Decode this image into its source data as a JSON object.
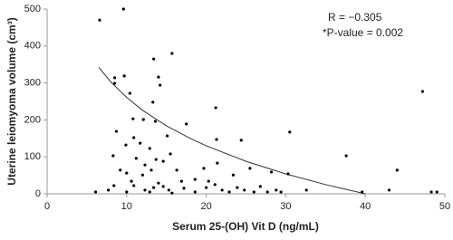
{
  "chart_data": {
    "type": "scatter",
    "x_label": "Serum 25-(OH) Vit D (ng/mL)",
    "y_label": "Uterine leiomyoma volume (cm³)",
    "annotations": [
      "R = −0.305",
      "*P-value = 0.002"
    ],
    "color": "#000000",
    "trend_color": "#333333",
    "axis_color": "#999999",
    "xlim": [
      0,
      50
    ],
    "xticks": [
      0,
      10,
      20,
      30,
      40,
      50
    ],
    "ylim": [
      0,
      500
    ],
    "yticks": [
      0,
      100,
      200,
      300,
      400,
      500
    ],
    "x": [
      6.6,
      9.6,
      8.5,
      9.7,
      8.5,
      10.4,
      13.4,
      15.7,
      14.0,
      14.2,
      8.7,
      10.8,
      12.1,
      13.3,
      13.6,
      15.1,
      9.9,
      10.9,
      11.7,
      17.5,
      21.2,
      21.3,
      24.4,
      30.5,
      47.2,
      37.6,
      44.0,
      8.3,
      11.2,
      12.9,
      13.7,
      14.6,
      15.5,
      12.3,
      10.0,
      10.6,
      9.2,
      12.0,
      13.1,
      16.3,
      19.7,
      21.4,
      25.5,
      28.2,
      30.3,
      7.7,
      6.1,
      8.4,
      10.9,
      12.3,
      13.4,
      14.0,
      14.6,
      15.3,
      16.9,
      17.2,
      18.6,
      20.0,
      20.3,
      21.1,
      22.0,
      23.4,
      23.9,
      24.8,
      26.0,
      26.8,
      27.7,
      28.8,
      29.4,
      32.6,
      39.6,
      43.0,
      48.3,
      49.0,
      10.0,
      12.9,
      15.7,
      18.6,
      22.9
    ],
    "y": [
      470,
      500,
      314,
      319,
      299,
      272,
      365,
      380,
      316,
      294,
      169,
      203,
      201,
      248,
      196,
      157,
      132,
      152,
      137,
      189,
      233,
      147,
      145,
      167,
      277,
      103,
      64,
      103,
      96,
      123,
      93,
      88,
      108,
      78,
      56,
      34,
      64,
      51,
      64,
      64,
      69,
      83,
      69,
      59,
      54,
      10,
      5,
      22,
      22,
      10,
      17,
      29,
      20,
      10,
      34,
      15,
      39,
      17,
      34,
      25,
      10,
      51,
      17,
      10,
      5,
      20,
      5,
      10,
      5,
      10,
      5,
      10,
      5,
      5,
      5,
      5,
      2,
      5,
      5
    ],
    "trend": {
      "x": [
        6.5,
        8,
        10,
        12,
        15,
        18,
        20,
        25,
        30,
        35,
        40
      ],
      "y": [
        342,
        303,
        261,
        226,
        184,
        150,
        130,
        88,
        54,
        25,
        0
      ]
    }
  }
}
